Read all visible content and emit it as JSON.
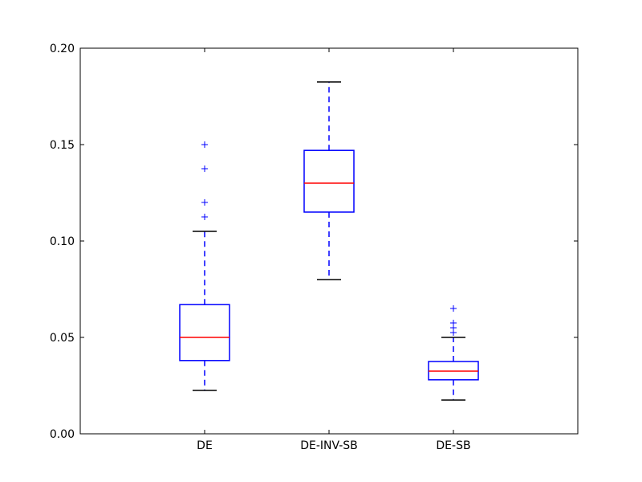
{
  "chart_data": {
    "type": "box",
    "title": "",
    "xlabel": "",
    "ylabel": "",
    "categories": [
      "DE",
      "DE-INV-SB",
      "DE-SB"
    ],
    "ylim": [
      0.0,
      0.2
    ],
    "yticks": [
      0.0,
      0.05,
      0.1,
      0.15,
      0.2
    ],
    "ytick_labels": [
      "0.00",
      "0.05",
      "0.10",
      "0.15",
      "0.20"
    ],
    "grid": false,
    "legend": "none",
    "boxes": [
      {
        "category": "DE",
        "whisker_low": 0.0225,
        "q1": 0.038,
        "median": 0.05,
        "q3": 0.067,
        "whisker_high": 0.105,
        "outliers": [
          0.1125,
          0.12,
          0.1375,
          0.15
        ]
      },
      {
        "category": "DE-INV-SB",
        "whisker_low": 0.08,
        "q1": 0.115,
        "median": 0.13,
        "q3": 0.147,
        "whisker_high": 0.1825,
        "outliers": []
      },
      {
        "category": "DE-SB",
        "whisker_low": 0.0175,
        "q1": 0.028,
        "median": 0.0325,
        "q3": 0.0375,
        "whisker_high": 0.05,
        "outliers": [
          0.0525,
          0.055,
          0.0575,
          0.065
        ]
      }
    ],
    "colors": {
      "box": "#0000ff",
      "median": "#ff0000",
      "whisker": "#0000ff",
      "cap": "#000000",
      "outlier": "#0000ff",
      "axes": "#000000"
    }
  }
}
